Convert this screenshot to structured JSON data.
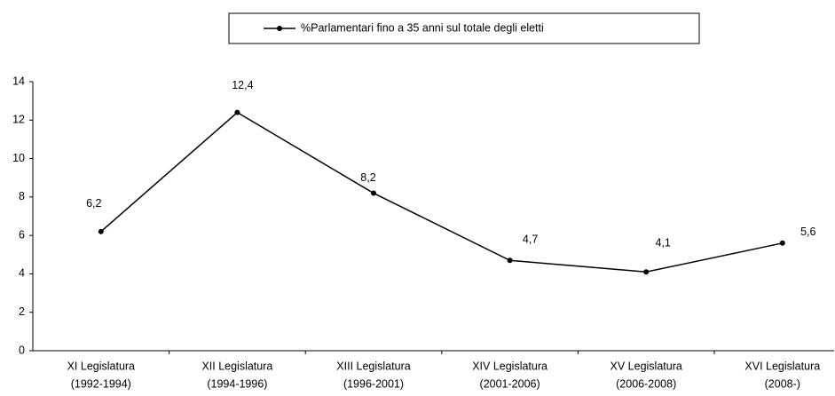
{
  "chart_data": {
    "type": "line",
    "categories": [
      [
        "XI Legislatura",
        "(1992-1994)"
      ],
      [
        "XII Legislatura",
        "(1994-1996)"
      ],
      [
        "XIII Legislatura",
        "(1996-2001)"
      ],
      [
        "XIV Legislatura",
        "(2001-2006)"
      ],
      [
        "XV Legislatura",
        "(2006-2008)"
      ],
      [
        "XVI Legislatura",
        "(2008-)"
      ]
    ],
    "series": [
      {
        "name": "%Parlamentari fino a 35 anni sul totale degli eletti",
        "color": "#000000",
        "values": [
          6.2,
          12.4,
          8.2,
          4.7,
          4.1,
          5.6
        ],
        "value_labels": [
          "6,2",
          "12,4",
          "8,2",
          "4,7",
          "4,1",
          "5,6"
        ]
      }
    ],
    "ylim": [
      0,
      14
    ],
    "yticks": [
      0,
      2,
      4,
      6,
      8,
      10,
      12,
      14
    ],
    "grid": false,
    "legend": "top"
  }
}
